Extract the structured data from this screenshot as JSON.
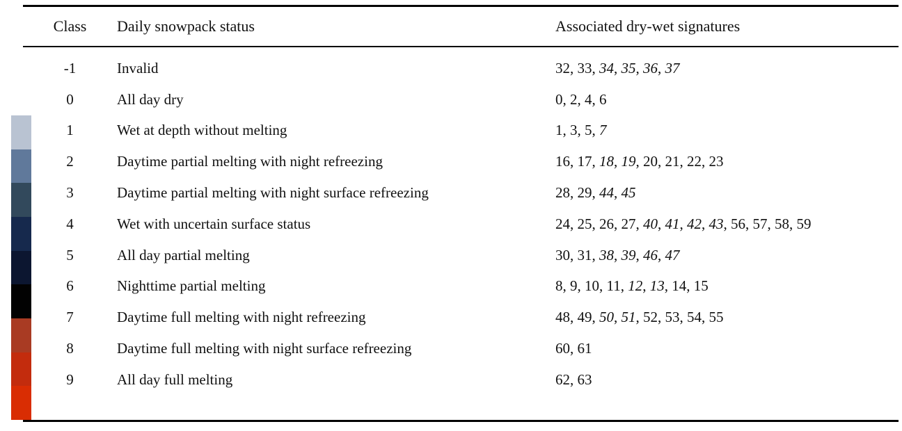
{
  "table": {
    "headers": {
      "class": "Class",
      "status": "Daily snowpack status",
      "signatures": "Associated dry-wet signatures"
    },
    "rows": [
      {
        "class": "-1",
        "status": "Invalid",
        "signatures": [
          {
            "t": "32",
            "i": false
          },
          {
            "t": "33",
            "i": false
          },
          {
            "t": "34",
            "i": true
          },
          {
            "t": "35",
            "i": true
          },
          {
            "t": "36",
            "i": true
          },
          {
            "t": "37",
            "i": true
          }
        ]
      },
      {
        "class": "0",
        "status": "All day dry",
        "signatures": [
          {
            "t": "0",
            "i": false
          },
          {
            "t": "2",
            "i": false
          },
          {
            "t": "4",
            "i": false
          },
          {
            "t": "6",
            "i": false
          }
        ]
      },
      {
        "class": "1",
        "status": "Wet at depth without melting",
        "signatures": [
          {
            "t": "1",
            "i": false
          },
          {
            "t": "3",
            "i": false
          },
          {
            "t": "5",
            "i": false
          },
          {
            "t": "7",
            "i": true
          }
        ]
      },
      {
        "class": "2",
        "status": "Daytime partial melting with night refreezing",
        "signatures": [
          {
            "t": "16",
            "i": false
          },
          {
            "t": "17",
            "i": false
          },
          {
            "t": "18",
            "i": true
          },
          {
            "t": "19",
            "i": true
          },
          {
            "t": "20",
            "i": false
          },
          {
            "t": "21",
            "i": false
          },
          {
            "t": "22",
            "i": false
          },
          {
            "t": "23",
            "i": false
          }
        ]
      },
      {
        "class": "3",
        "status": "Daytime partial melting with night surface refreezing",
        "signatures": [
          {
            "t": "28",
            "i": false
          },
          {
            "t": "29",
            "i": false
          },
          {
            "t": "44",
            "i": true
          },
          {
            "t": "45",
            "i": true
          }
        ]
      },
      {
        "class": "4",
        "status": "Wet with uncertain surface status",
        "signatures": [
          {
            "t": "24",
            "i": false
          },
          {
            "t": "25",
            "i": false
          },
          {
            "t": "26",
            "i": false
          },
          {
            "t": "27",
            "i": false
          },
          {
            "t": "40",
            "i": true
          },
          {
            "t": "41",
            "i": true
          },
          {
            "t": "42",
            "i": true
          },
          {
            "t": "43",
            "i": true
          },
          {
            "t": "56",
            "i": false
          },
          {
            "t": "57",
            "i": false
          },
          {
            "t": "58",
            "i": false
          },
          {
            "t": "59",
            "i": false
          }
        ]
      },
      {
        "class": "5",
        "status": "All day partial melting",
        "signatures": [
          {
            "t": "30",
            "i": false
          },
          {
            "t": "31",
            "i": false
          },
          {
            "t": "38",
            "i": true
          },
          {
            "t": "39",
            "i": true
          },
          {
            "t": "46",
            "i": true
          },
          {
            "t": "47",
            "i": true
          }
        ]
      },
      {
        "class": "6",
        "status": "Nighttime partial melting",
        "signatures": [
          {
            "t": "8",
            "i": false
          },
          {
            "t": "9",
            "i": false
          },
          {
            "t": "10",
            "i": false
          },
          {
            "t": "11",
            "i": false
          },
          {
            "t": "12",
            "i": true
          },
          {
            "t": "13",
            "i": true
          },
          {
            "t": "14",
            "i": false
          },
          {
            "t": "15",
            "i": false
          }
        ]
      },
      {
        "class": "7",
        "status": "Daytime full melting with night refreezing",
        "signatures": [
          {
            "t": "48",
            "i": false
          },
          {
            "t": "49",
            "i": false
          },
          {
            "t": "50",
            "i": true
          },
          {
            "t": "51",
            "i": true
          },
          {
            "t": "52",
            "i": false
          },
          {
            "t": "53",
            "i": false
          },
          {
            "t": "54",
            "i": false
          },
          {
            "t": "55",
            "i": false
          }
        ]
      },
      {
        "class": "8",
        "status": "Daytime full melting with night surface refreezing",
        "signatures": [
          {
            "t": "60",
            "i": false
          },
          {
            "t": "61",
            "i": false
          }
        ]
      },
      {
        "class": "9",
        "status": "All day full melting",
        "signatures": [
          {
            "t": "62",
            "i": false
          },
          {
            "t": "63",
            "i": false
          }
        ]
      }
    ]
  },
  "colorbar": {
    "colors": [
      "#b9c3d2",
      "#60799b",
      "#32495c",
      "#16294d",
      "#0c1630",
      "#020202",
      "#a93b23",
      "#c32c0d",
      "#d92d03"
    ],
    "note_classes": [
      "1",
      "2",
      "3",
      "4",
      "5",
      "6",
      "7",
      "8",
      "9"
    ]
  },
  "rule_color": "#000000"
}
